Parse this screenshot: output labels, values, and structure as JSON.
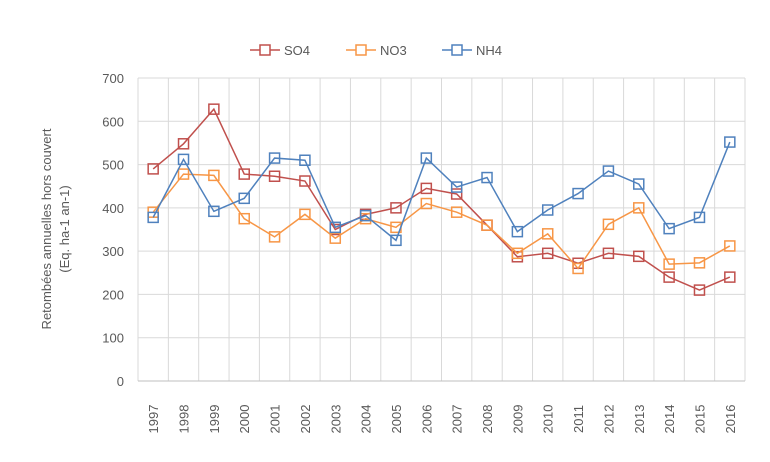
{
  "chart_data": {
    "type": "line",
    "title": "",
    "xlabel": "",
    "ylabel": [
      "Retombées  annuelles hors couvert",
      "(Eq. ha-1 an-1)"
    ],
    "ylim": [
      0,
      700
    ],
    "yticks": [
      0,
      100,
      200,
      300,
      400,
      500,
      600,
      700
    ],
    "grid": true,
    "legend": "top",
    "categories": [
      "1997",
      "1998",
      "1999",
      "2000",
      "2001",
      "2002",
      "2003",
      "2004",
      "2005",
      "2006",
      "2007",
      "2008",
      "2009",
      "2010",
      "2011",
      "2012",
      "2013",
      "2014",
      "2015",
      "2016"
    ],
    "series": [
      {
        "name": "SO4",
        "color": "#c0504d",
        "values": [
          490,
          548,
          628,
          478,
          473,
          462,
          350,
          385,
          400,
          445,
          432,
          360,
          287,
          295,
          272,
          295,
          288,
          240,
          210,
          240
        ]
      },
      {
        "name": "NO3",
        "color": "#f79646",
        "values": [
          390,
          478,
          475,
          375,
          333,
          385,
          330,
          375,
          355,
          410,
          390,
          360,
          295,
          340,
          260,
          362,
          400,
          270,
          273,
          312
        ]
      },
      {
        "name": "NH4",
        "color": "#4f81bd",
        "values": [
          378,
          512,
          392,
          422,
          515,
          510,
          355,
          382,
          325,
          515,
          448,
          470,
          345,
          395,
          433,
          485,
          455,
          352,
          378,
          552
        ]
      }
    ]
  }
}
